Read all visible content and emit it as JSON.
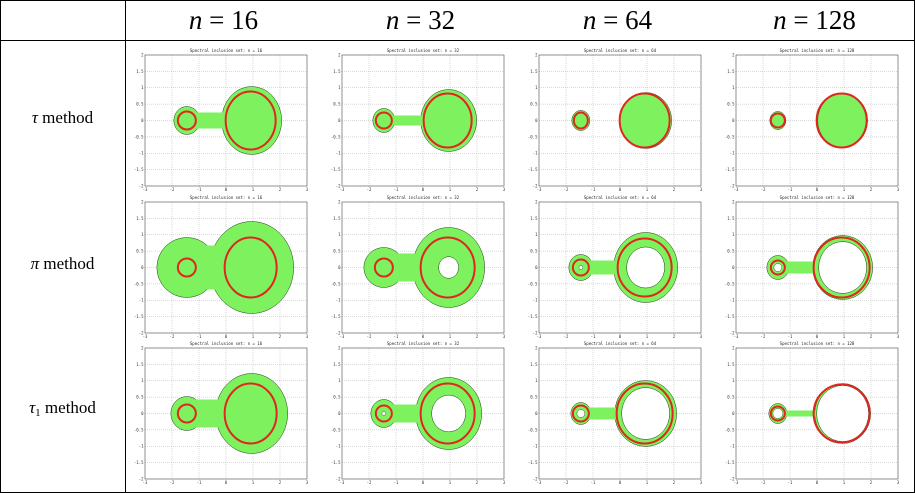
{
  "table": {
    "columns": [
      {
        "var": "n",
        "value": "16"
      },
      {
        "var": "n",
        "value": "32"
      },
      {
        "var": "n",
        "value": "64"
      },
      {
        "var": "n",
        "value": "128"
      }
    ],
    "rows": [
      {
        "symbol": "τ",
        "subscript": "",
        "word": "method"
      },
      {
        "symbol": "π",
        "subscript": "",
        "word": "method"
      },
      {
        "symbol": "τ",
        "subscript": "1",
        "word": "method"
      }
    ]
  },
  "panel_title_prefix": "Spectral inclusion set: n = ",
  "axis": {
    "xticks": [
      "-3",
      "-2",
      "-1",
      "0",
      "1",
      "2",
      "3"
    ],
    "yticks": [
      "2",
      "1.5",
      "1",
      "0.5",
      "0",
      "-0.5",
      "-1",
      "-1.5",
      "-2"
    ]
  },
  "colors": {
    "region_fill": "#7ef25e",
    "curve": "#e0261f",
    "outline": "#1a3a12",
    "grid": "#a0a0a0"
  }
}
